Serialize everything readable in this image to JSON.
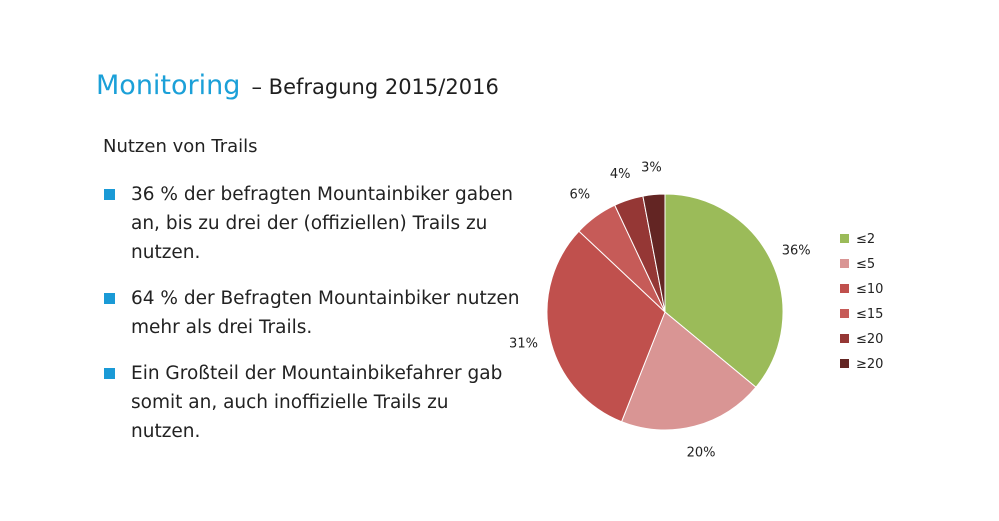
{
  "header": {
    "title_main": "Monitoring",
    "title_rest": "– Befragung 2015/2016"
  },
  "content": {
    "subtitle": "Nutzen von Trails",
    "bullets": [
      "36 % der befragten Mountainbiker gaben an, bis zu drei der (offiziellen) Trails zu nutzen.",
      "64 % der Befragten Mountainbiker nutzen mehr als drei Trails.",
      "Ein Großteil der Mountainbikefahrer gab somit an, auch inoffizielle Trails zu nutzen."
    ]
  },
  "colors": {
    "accent": "#1ba0d8",
    "bullet": "#1a9ad6"
  },
  "chart_data": {
    "type": "pie",
    "title": "",
    "labels": [
      "≤2",
      "≤5",
      "≤10",
      "≤15",
      "≤20",
      "≥20"
    ],
    "values": [
      36,
      20,
      31,
      6,
      4,
      3
    ],
    "value_labels": [
      "36%",
      "20%",
      "31%",
      "6%",
      "4%",
      "3%"
    ],
    "colors": [
      "#9bbb59",
      "#d99594",
      "#c0504d",
      "#c65b58",
      "#953735",
      "#632523"
    ],
    "start_angle_deg": 0,
    "direction": "clockwise",
    "legend_position": "right"
  }
}
